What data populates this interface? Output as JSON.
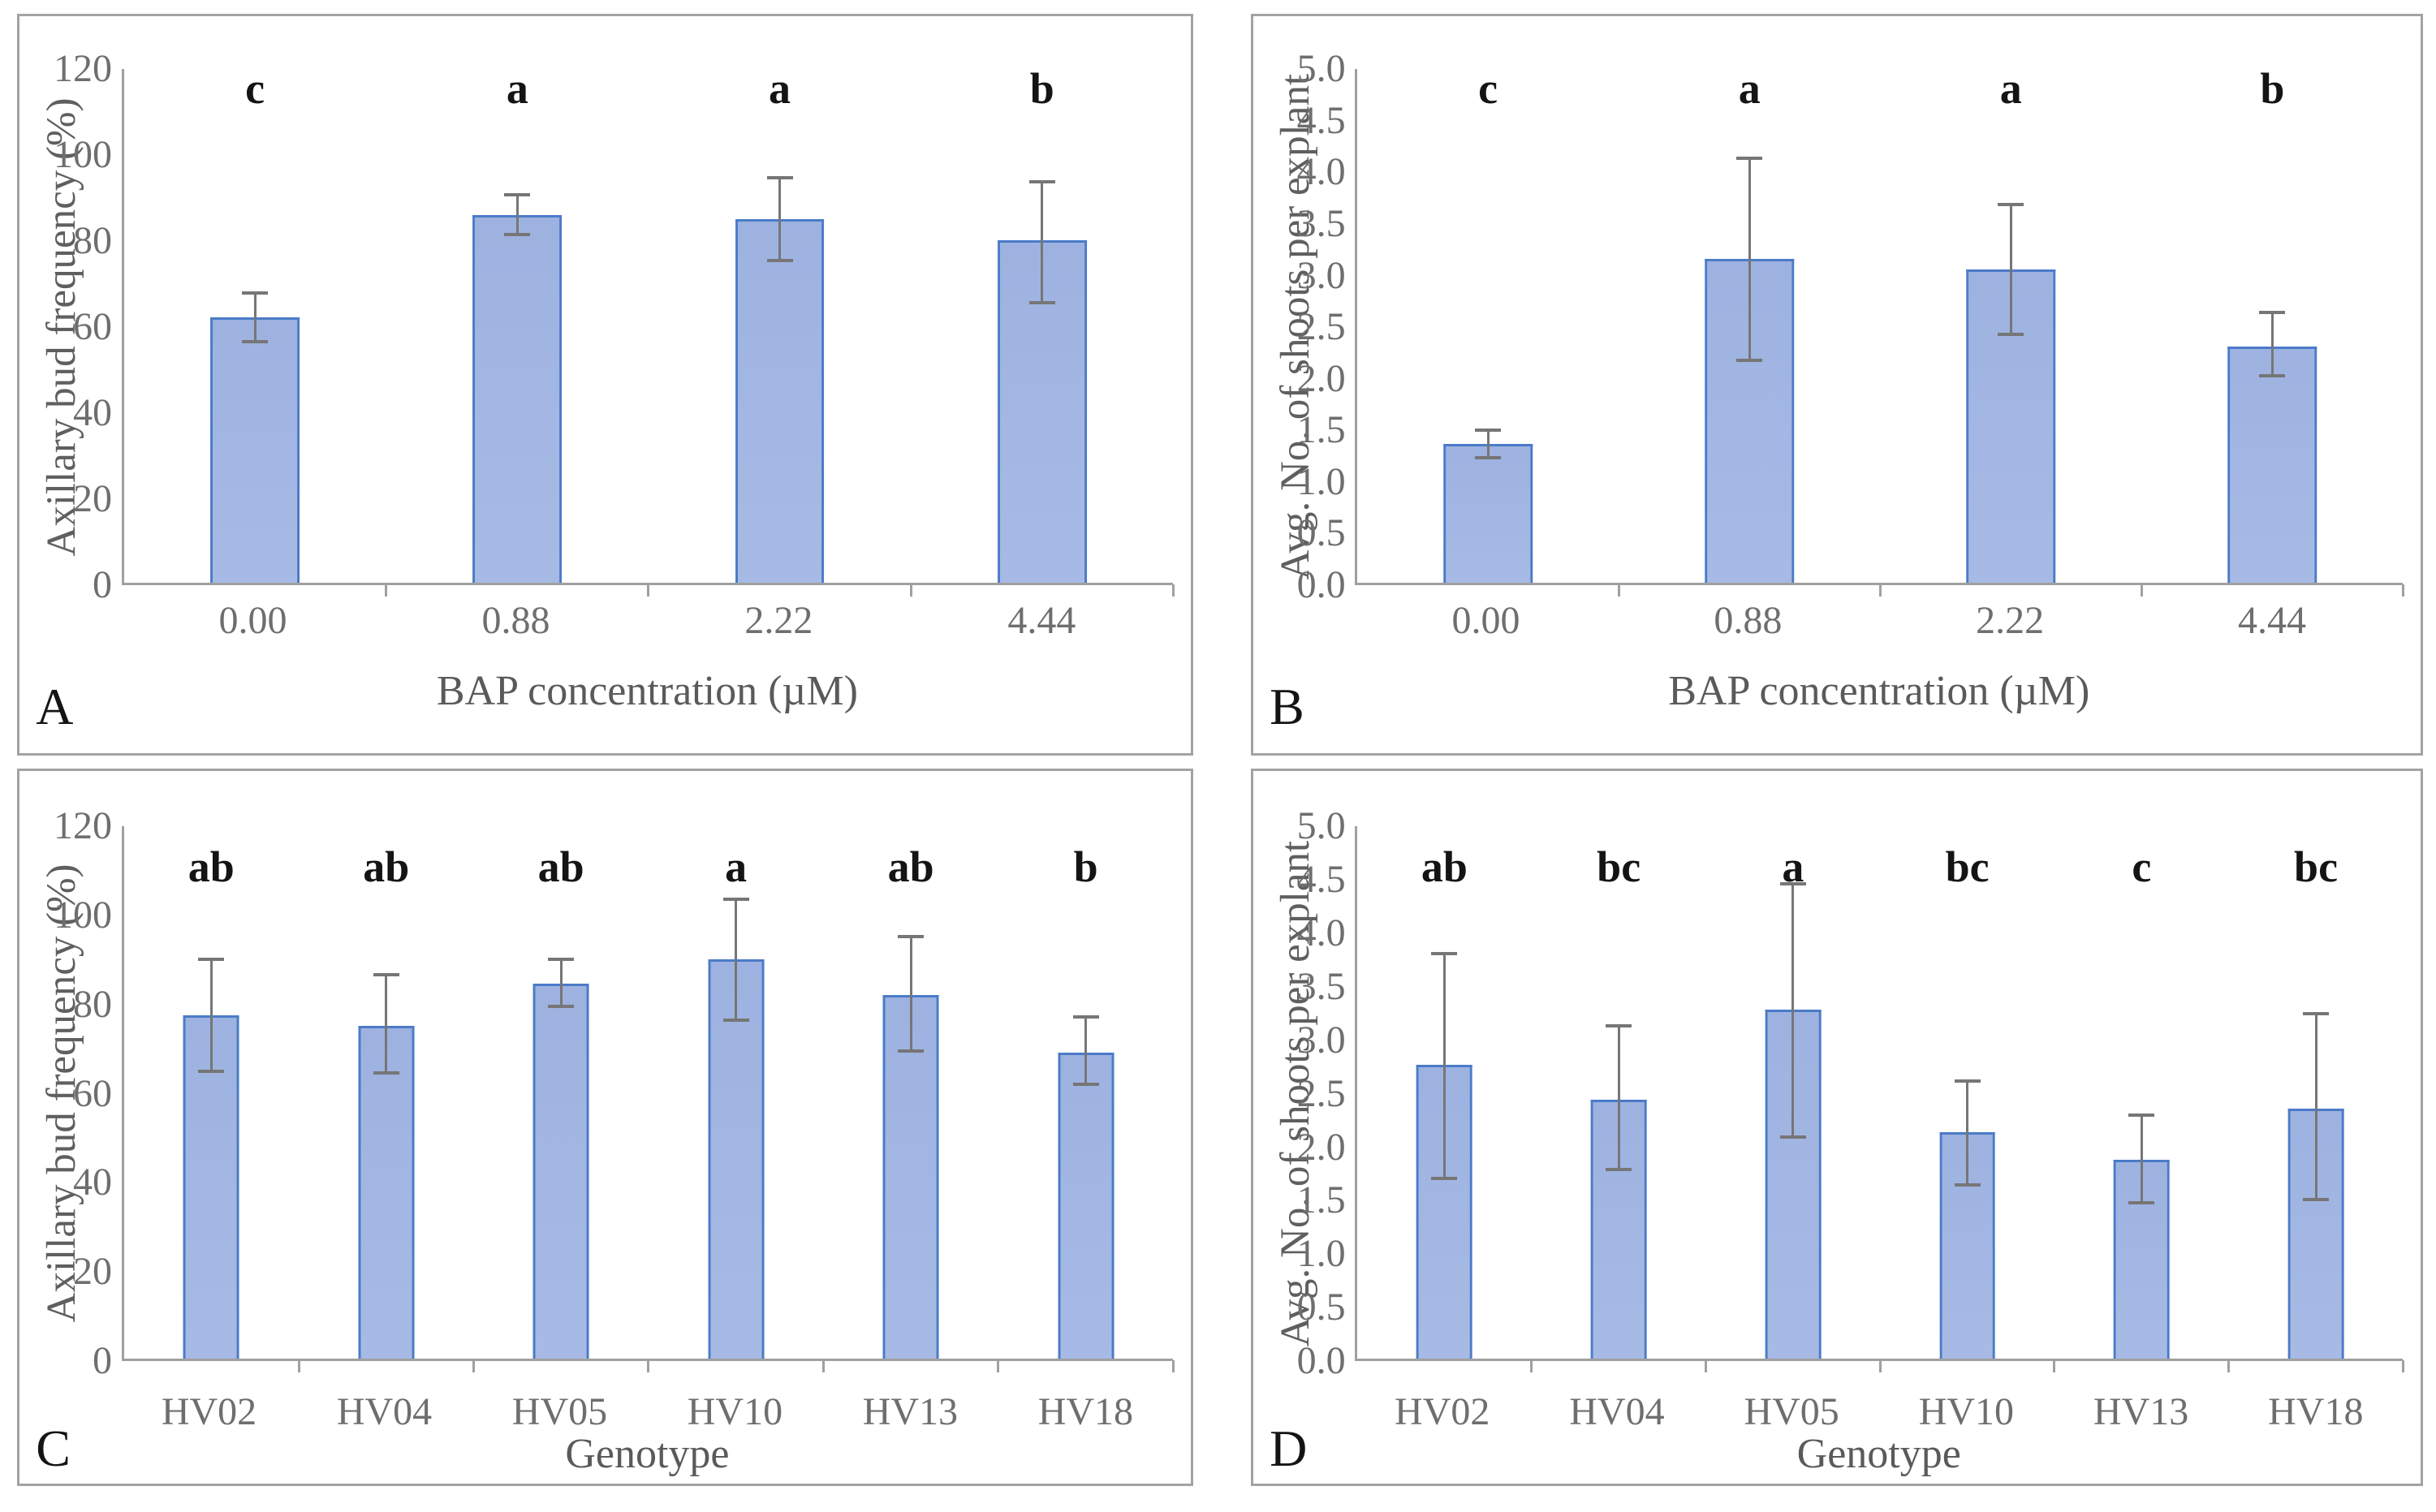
{
  "figure": {
    "background": "#ffffff",
    "panel_border_color": "#a3a3a3",
    "axis_color": "#a0a0a0",
    "bar_fill_top": "#9db2e0",
    "bar_fill_bottom": "#a7bae5",
    "bar_border_color": "#4b7bc8",
    "error_bar_color": "#767676",
    "tick_label_color": "#6e6e6e",
    "axis_title_color": "#5a5a5a",
    "sig_letter_color": "#141414",
    "panel_letter_color": "#141414"
  },
  "chart_data": [
    {
      "panel_label": "A",
      "type": "bar",
      "ylabel": "Axillary bud frequency (%)",
      "xlabel": "BAP concentration (µM)",
      "categories": [
        "0.00",
        "0.88",
        "2.22",
        "4.44"
      ],
      "values": [
        62,
        86,
        85,
        80
      ],
      "error_low": [
        56,
        81,
        75,
        65
      ],
      "error_high": [
        68,
        91,
        95,
        94
      ],
      "sig_letters": [
        "c",
        "a",
        "a",
        "b"
      ],
      "ylim": [
        0,
        120
      ],
      "yticks": [
        0,
        20,
        40,
        60,
        80,
        100,
        120
      ],
      "ytick_labels": [
        "0",
        "20",
        "40",
        "60",
        "80",
        "100",
        "120"
      ],
      "grid_lines": "none",
      "legend": "none"
    },
    {
      "panel_label": "B",
      "type": "bar",
      "ylabel": "Avg. No. of shoots per explant",
      "xlabel": "BAP concentration (µM)",
      "categories": [
        "0.00",
        "0.88",
        "2.22",
        "4.44"
      ],
      "values": [
        1.35,
        3.15,
        3.05,
        2.3
      ],
      "error_low": [
        1.2,
        2.15,
        2.4,
        2.0
      ],
      "error_high": [
        1.5,
        4.15,
        3.7,
        2.65
      ],
      "sig_letters": [
        "c",
        "a",
        "a",
        "b"
      ],
      "ylim": [
        0,
        5
      ],
      "yticks": [
        0,
        0.5,
        1.0,
        1.5,
        2.0,
        2.5,
        3.0,
        3.5,
        4.0,
        4.5,
        5.0
      ],
      "ytick_labels": [
        "0.0",
        "0.5",
        "1.0",
        "1.5",
        "2.0",
        "2.5",
        "3.0",
        "3.5",
        "4.0",
        "4.5",
        "5.0"
      ],
      "grid_lines": "none",
      "legend": "none"
    },
    {
      "panel_label": "C",
      "type": "bar",
      "ylabel": "Axillary bud frequency (%)",
      "xlabel": "Genotype",
      "categories": [
        "HV02",
        "HV04",
        "HV05",
        "HV10",
        "HV13",
        "HV18"
      ],
      "values": [
        77.5,
        75,
        84.5,
        90,
        82,
        69
      ],
      "error_low": [
        64.5,
        64,
        79,
        76,
        69,
        61.5
      ],
      "error_high": [
        90.5,
        87,
        90.5,
        104,
        95.5,
        77.5
      ],
      "sig_letters": [
        "ab",
        "ab",
        "ab",
        "a",
        "ab",
        "b"
      ],
      "ylim": [
        0,
        120
      ],
      "yticks": [
        0,
        20,
        40,
        60,
        80,
        100,
        120
      ],
      "ytick_labels": [
        "0",
        "20",
        "40",
        "60",
        "80",
        "100",
        "120"
      ],
      "grid_lines": "none",
      "legend": "none"
    },
    {
      "panel_label": "D",
      "type": "bar",
      "ylabel": "Avg. No. of shoots per explant",
      "xlabel": "Genotype",
      "categories": [
        "HV02",
        "HV04",
        "HV05",
        "HV10",
        "HV13",
        "HV18"
      ],
      "values": [
        2.76,
        2.43,
        3.28,
        2.13,
        1.87,
        2.35
      ],
      "error_low": [
        1.68,
        1.76,
        2.07,
        1.62,
        1.45,
        1.48
      ],
      "error_high": [
        3.82,
        3.14,
        4.48,
        2.62,
        2.3,
        3.26
      ],
      "sig_letters": [
        "ab",
        "bc",
        "a",
        "bc",
        "c",
        "bc"
      ],
      "ylim": [
        0,
        5
      ],
      "yticks": [
        0,
        0.5,
        1.0,
        1.5,
        2.0,
        2.5,
        3.0,
        3.5,
        4.0,
        4.5,
        5.0
      ],
      "ytick_labels": [
        "0.0",
        "0.5",
        "1.0",
        "1.5",
        "2.0",
        "2.5",
        "3.0",
        "3.5",
        "4.0",
        "4.5",
        "5.0"
      ],
      "grid_lines": "none",
      "legend": "none"
    }
  ]
}
